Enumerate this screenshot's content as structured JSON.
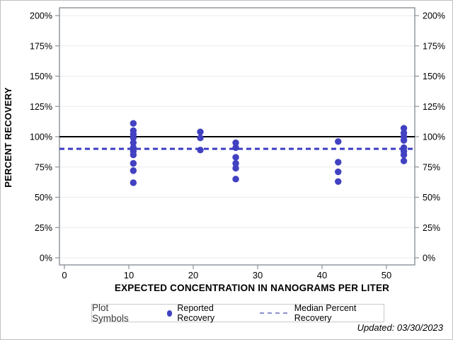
{
  "figure": {
    "footer": "Updated: 03/30/2023"
  },
  "chart_data": {
    "type": "scatter",
    "title": "",
    "xlabel": "EXPECTED CONCENTRATION IN NANOGRAMS PER LITER",
    "ylabel": "PERCENT RECOVERY",
    "xticks": [
      0,
      10,
      20,
      30,
      40,
      50
    ],
    "ytick_values": [
      0,
      25,
      50,
      75,
      100,
      125,
      150,
      175,
      200
    ],
    "ytick_label_suffix": "%",
    "xlim": [
      -0.8,
      54.4
    ],
    "ylim": [
      -5.8,
      206.4
    ],
    "grid": "horizontal-only",
    "y_axis_sides": "both",
    "legend_position": "bottom",
    "reference_line": {
      "y": 100,
      "style": "solid",
      "color": "#000000"
    },
    "series": [
      {
        "name": "Reported Recovery",
        "type": "scatter",
        "color": "#4141c1",
        "points": [
          [
            10.7,
            111
          ],
          [
            10.7,
            105
          ],
          [
            10.7,
            102
          ],
          [
            10.7,
            99
          ],
          [
            10.7,
            95
          ],
          [
            10.7,
            91
          ],
          [
            10.7,
            88
          ],
          [
            10.7,
            85
          ],
          [
            10.7,
            78
          ],
          [
            10.7,
            72
          ],
          [
            10.7,
            62
          ],
          [
            21.1,
            104
          ],
          [
            21.1,
            99
          ],
          [
            21.1,
            89
          ],
          [
            26.6,
            95
          ],
          [
            26.6,
            91
          ],
          [
            26.6,
            83
          ],
          [
            26.6,
            78
          ],
          [
            26.6,
            74
          ],
          [
            26.6,
            65
          ],
          [
            42.5,
            96
          ],
          [
            42.5,
            79
          ],
          [
            42.5,
            71
          ],
          [
            42.5,
            63
          ],
          [
            52.7,
            107
          ],
          [
            52.7,
            103
          ],
          [
            52.7,
            100
          ],
          [
            52.7,
            97
          ],
          [
            52.7,
            91
          ],
          [
            52.7,
            88
          ],
          [
            52.7,
            85
          ],
          [
            52.7,
            80
          ]
        ]
      },
      {
        "name": "Median Percent Recovery",
        "type": "hline-dashed",
        "y": 90,
        "color": "#3d3dc4"
      }
    ]
  },
  "legend": {
    "title": "Plot Symbols",
    "entries": [
      {
        "label": "Reported Recovery",
        "marker": "dot",
        "color": "#4141c1"
      },
      {
        "label": "Median Percent Recovery",
        "marker": "dashed-line",
        "color": "#8d90d2"
      }
    ]
  },
  "colors": {
    "frame": "#8a9298",
    "grid": "#ebebeb",
    "tick": "#8a9298",
    "marker": "#4141c1",
    "median_line": "#3d3dc4",
    "reference_line": "#000000",
    "page_border": "#bdc1c3",
    "legend_border": "#c6cacc"
  }
}
